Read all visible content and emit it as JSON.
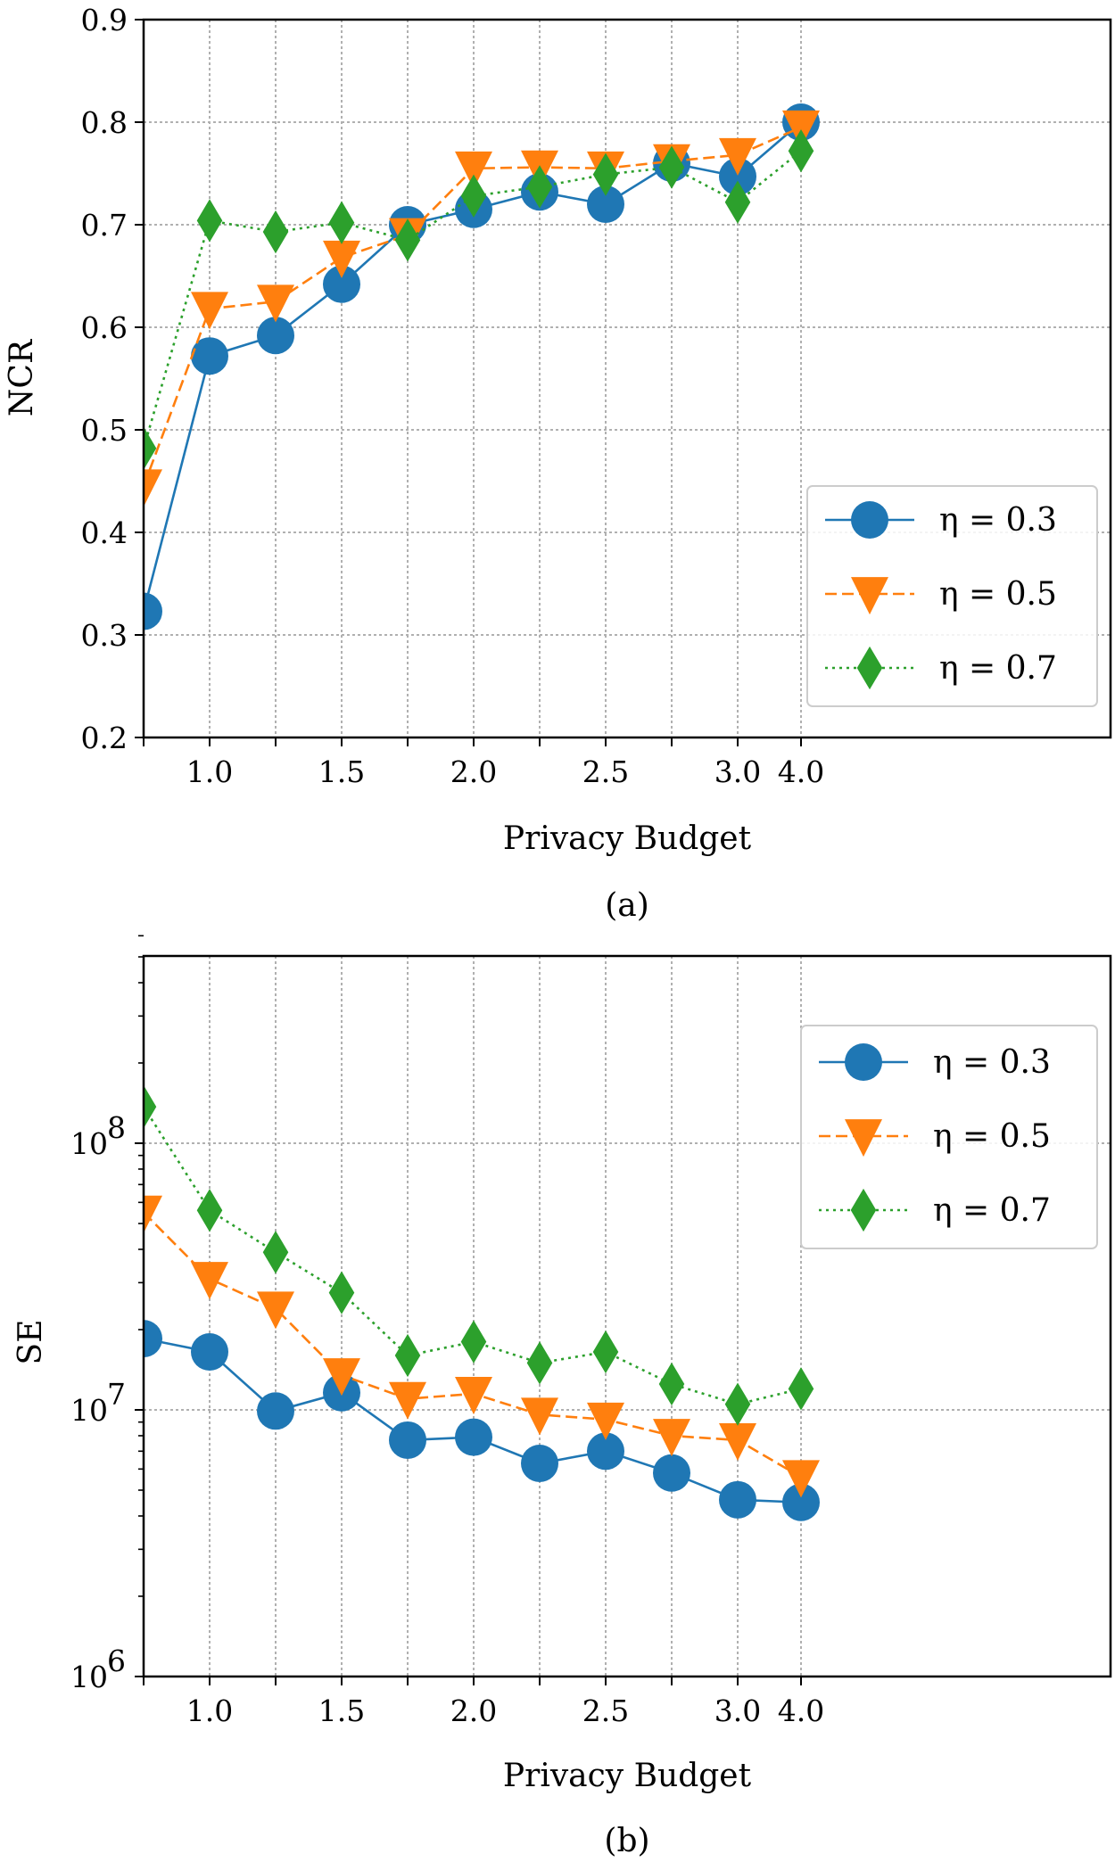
{
  "chart_data": [
    {
      "type": "line",
      "caption": "(a)",
      "xlabel": "Privacy Budget",
      "ylabel": "NCR",
      "x": [
        0.75,
        1.0,
        1.25,
        1.5,
        1.75,
        2.0,
        2.25,
        2.5,
        2.75,
        3.0,
        4.0
      ],
      "xtick_labels": [
        "1.0",
        "1.5",
        "2.0",
        "2.5",
        "3.0",
        "4.0"
      ],
      "ylim": [
        0.2,
        0.9
      ],
      "yticks": [
        "0.2",
        "0.3",
        "0.4",
        "0.5",
        "0.6",
        "0.7",
        "0.8",
        "0.9"
      ],
      "yscale": "linear",
      "grid": true,
      "legend_position": "lower right",
      "series": [
        {
          "name": "η = 0.3",
          "color": "#1f77b4",
          "marker": "circle",
          "linestyle": "solid",
          "values": [
            0.323,
            0.572,
            0.592,
            0.642,
            0.7,
            0.715,
            0.732,
            0.72,
            0.76,
            0.747,
            0.8
          ]
        },
        {
          "name": "η = 0.5",
          "color": "#ff7f0e",
          "marker": "triangle-down",
          "linestyle": "dashed",
          "values": [
            0.445,
            0.618,
            0.625,
            0.668,
            0.69,
            0.755,
            0.756,
            0.755,
            0.762,
            0.768,
            0.795
          ]
        },
        {
          "name": "η = 0.7",
          "color": "#2ca02c",
          "marker": "diamond",
          "linestyle": "dotted",
          "values": [
            0.482,
            0.704,
            0.693,
            0.702,
            0.685,
            0.728,
            0.737,
            0.749,
            0.756,
            0.722,
            0.772
          ]
        }
      ]
    },
    {
      "type": "line",
      "caption": "(b)",
      "xlabel": "Privacy Budget",
      "ylabel": "SE",
      "x": [
        0.75,
        1.0,
        1.25,
        1.5,
        1.75,
        2.0,
        2.25,
        2.5,
        2.75,
        3.0,
        4.0
      ],
      "xtick_labels": [
        "1.0",
        "1.5",
        "2.0",
        "2.5",
        "3.0",
        "4.0"
      ],
      "ylim": [
        1000000,
        600000000
      ],
      "yticks": [
        "10^6",
        "10^7",
        "10^8"
      ],
      "yscale": "log",
      "grid": true,
      "legend_position": "upper right",
      "series": [
        {
          "name": "η = 0.3",
          "color": "#1f77b4",
          "marker": "circle",
          "linestyle": "solid",
          "values": [
            18500000,
            16500000,
            9900000,
            11600000,
            7700000,
            7900000,
            6300000,
            7000000,
            5800000,
            4600000,
            4500000
          ]
        },
        {
          "name": "η = 0.5",
          "color": "#ff7f0e",
          "marker": "triangle-down",
          "linestyle": "dashed",
          "values": [
            55000000,
            31000000,
            24000000,
            13500000,
            11000000,
            11500000,
            9600000,
            9200000,
            8000000,
            7700000,
            5600000
          ]
        },
        {
          "name": "η = 0.7",
          "color": "#2ca02c",
          "marker": "diamond",
          "linestyle": "dotted",
          "values": [
            137000000,
            56000000,
            39000000,
            27500000,
            16000000,
            18000000,
            15000000,
            16500000,
            12500000,
            10500000,
            12000000
          ]
        }
      ]
    }
  ]
}
